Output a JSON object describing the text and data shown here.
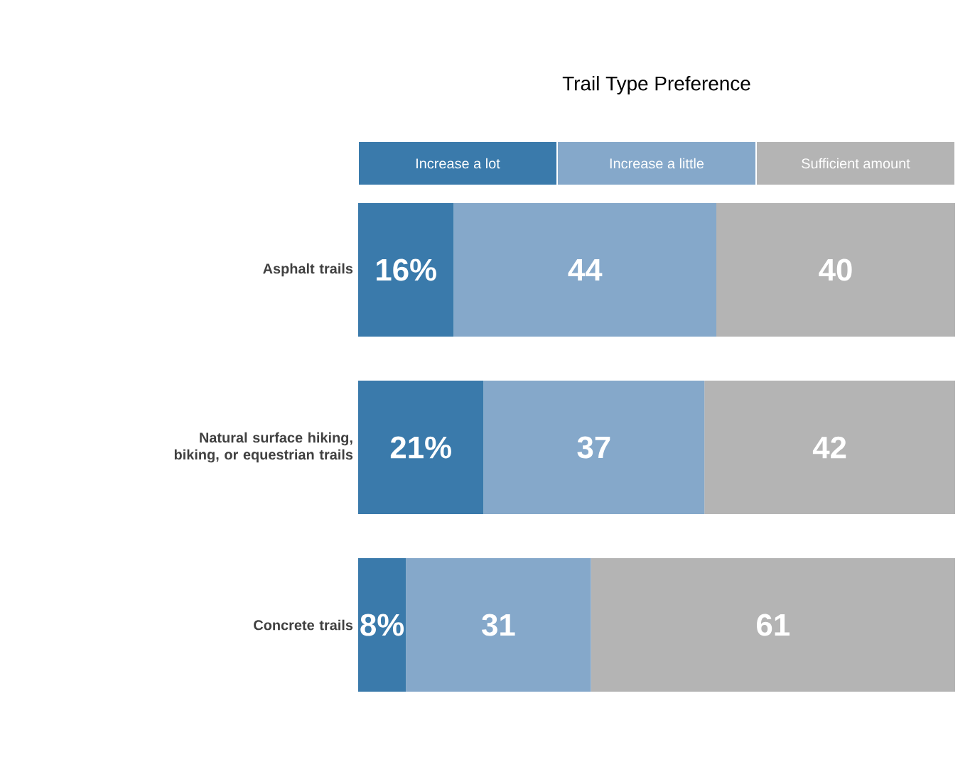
{
  "chart_data": {
    "type": "bar",
    "orientation": "horizontal",
    "stacked": true,
    "title": "Trail Type Preference",
    "categories": [
      "Asphalt trails",
      "Natural surface hiking, biking, or equestrian trails",
      "Concrete trails"
    ],
    "series": [
      {
        "name": "Increase a lot",
        "color": "#3a7aab",
        "values": [
          16,
          21,
          8
        ],
        "value_labels": [
          "16%",
          "21%",
          "8%"
        ]
      },
      {
        "name": "Increase a little",
        "color": "#85a8ca",
        "values": [
          44,
          37,
          31
        ],
        "value_labels": [
          "44",
          "37",
          "31"
        ]
      },
      {
        "name": "Sufficient amount",
        "color": "#b4b4b4",
        "values": [
          40,
          42,
          61
        ],
        "value_labels": [
          "40",
          "42",
          "61"
        ]
      }
    ],
    "xlim": [
      0,
      100
    ],
    "legend": "top",
    "tick_labels": "y"
  }
}
